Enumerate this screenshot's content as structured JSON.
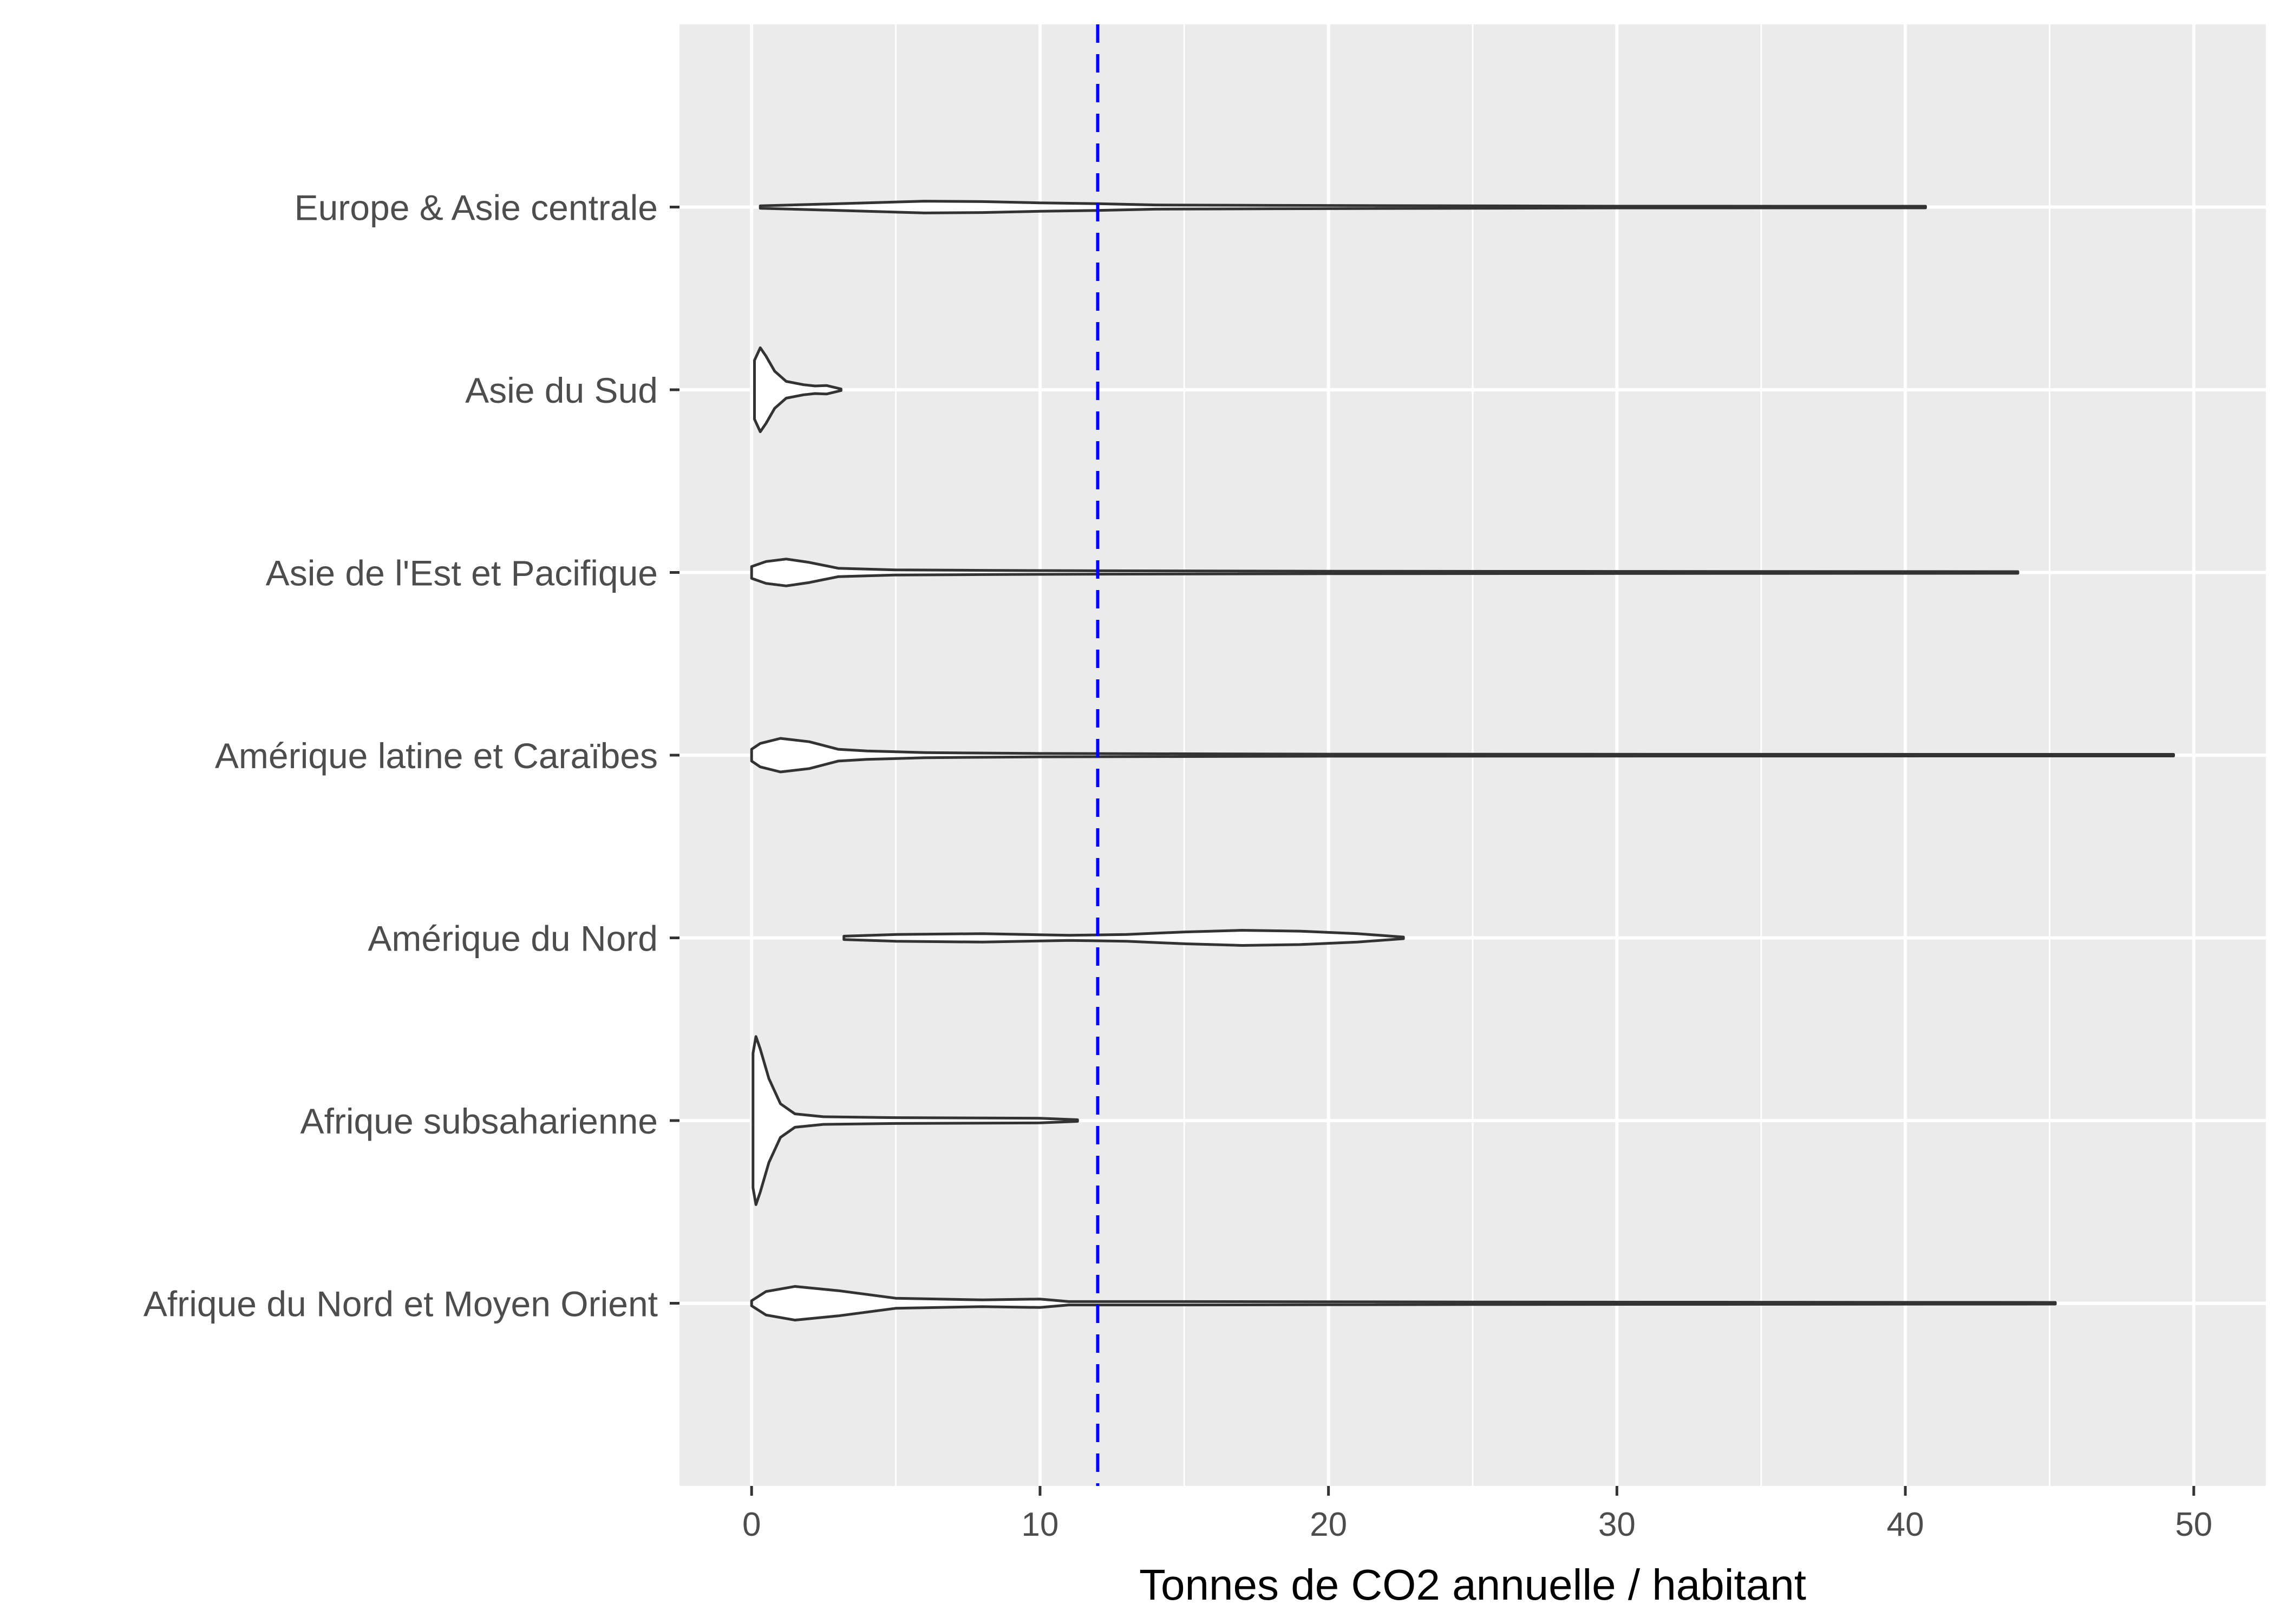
{
  "chart_data": {
    "type": "violin",
    "orientation": "horizontal",
    "title": "",
    "xlabel": "Tonnes de CO2 annuelle / habitant",
    "ylabel": "",
    "xlim": [
      -2.5,
      52.5
    ],
    "x_ticks": [
      0,
      10,
      20,
      30,
      40,
      50
    ],
    "grid": true,
    "reference_line": {
      "x": 12,
      "style": "dashed",
      "color": "#0000ff"
    },
    "categories": [
      "Afrique du Nord et Moyen Orient",
      "Afrique subsaharienne",
      "Amérique du Nord",
      "Amérique latine et Caraïbes",
      "Asie de l'Est et Pacifique",
      "Asie du Sud",
      "Europe & Asie centrale"
    ],
    "series": [
      {
        "name": "Afrique du Nord et Moyen Orient",
        "min": 0.0,
        "max": 45.2,
        "density": [
          [
            0.0,
            0.03
          ],
          [
            0.5,
            0.14
          ],
          [
            1.5,
            0.2
          ],
          [
            3,
            0.15
          ],
          [
            5,
            0.06
          ],
          [
            8,
            0.04
          ],
          [
            10,
            0.05
          ],
          [
            11,
            0.02
          ],
          [
            15,
            0.02
          ],
          [
            25,
            0.015
          ],
          [
            35,
            0.012
          ],
          [
            45.2,
            0.0
          ]
        ]
      },
      {
        "name": "Afrique subsaharienne",
        "min": 0.05,
        "max": 11.3,
        "density": [
          [
            0.05,
            0.8
          ],
          [
            0.15,
            1.0
          ],
          [
            0.3,
            0.85
          ],
          [
            0.6,
            0.5
          ],
          [
            1.0,
            0.2
          ],
          [
            1.5,
            0.08
          ],
          [
            2.5,
            0.045
          ],
          [
            5,
            0.035
          ],
          [
            8,
            0.03
          ],
          [
            10,
            0.028
          ],
          [
            11.3,
            0.0
          ]
        ]
      },
      {
        "name": "Amérique du Nord",
        "min": 3.2,
        "max": 22.6,
        "density": [
          [
            3.2,
            0.02
          ],
          [
            5,
            0.04
          ],
          [
            8,
            0.05
          ],
          [
            11,
            0.03
          ],
          [
            13,
            0.04
          ],
          [
            15,
            0.07
          ],
          [
            17,
            0.09
          ],
          [
            19,
            0.08
          ],
          [
            21,
            0.05
          ],
          [
            22.6,
            0.0
          ]
        ]
      },
      {
        "name": "Amérique latine et Caraïbes",
        "min": 0.0,
        "max": 49.3,
        "density": [
          [
            0.0,
            0.07
          ],
          [
            0.3,
            0.14
          ],
          [
            1,
            0.2
          ],
          [
            2,
            0.16
          ],
          [
            3,
            0.07
          ],
          [
            4,
            0.05
          ],
          [
            6,
            0.03
          ],
          [
            10,
            0.02
          ],
          [
            20,
            0.012
          ],
          [
            35,
            0.01
          ],
          [
            49.3,
            0.0
          ]
        ]
      },
      {
        "name": "Asie de l'Est et Pacifique",
        "min": 0.0,
        "max": 43.9,
        "density": [
          [
            0.0,
            0.07
          ],
          [
            0.5,
            0.13
          ],
          [
            1.2,
            0.16
          ],
          [
            2,
            0.12
          ],
          [
            3,
            0.05
          ],
          [
            5,
            0.03
          ],
          [
            8,
            0.025
          ],
          [
            12,
            0.02
          ],
          [
            20,
            0.015
          ],
          [
            30,
            0.012
          ],
          [
            43.9,
            0.0
          ]
        ]
      },
      {
        "name": "Asie du Sud",
        "min": 0.1,
        "max": 3.1,
        "density": [
          [
            0.1,
            0.35
          ],
          [
            0.3,
            0.5
          ],
          [
            0.5,
            0.4
          ],
          [
            0.8,
            0.22
          ],
          [
            1.2,
            0.1
          ],
          [
            1.8,
            0.06
          ],
          [
            2.2,
            0.045
          ],
          [
            2.6,
            0.05
          ],
          [
            3.1,
            0.0
          ]
        ]
      },
      {
        "name": "Europe & Asie centrale",
        "min": 0.3,
        "max": 40.7,
        "density": [
          [
            0.3,
            0.015
          ],
          [
            2,
            0.03
          ],
          [
            4,
            0.05
          ],
          [
            6,
            0.07
          ],
          [
            8,
            0.065
          ],
          [
            10,
            0.05
          ],
          [
            12,
            0.04
          ],
          [
            14,
            0.025
          ],
          [
            18,
            0.02
          ],
          [
            25,
            0.015
          ],
          [
            30,
            0.01
          ],
          [
            40.7,
            0.0
          ]
        ]
      }
    ]
  }
}
